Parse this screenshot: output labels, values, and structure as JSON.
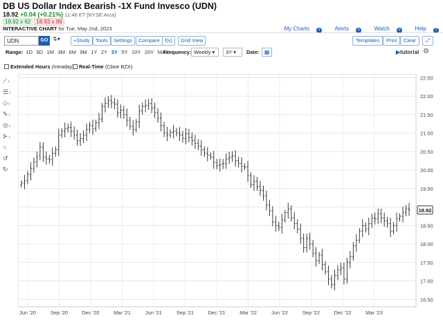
{
  "header": {
    "title": "DB US Dollar Index Bearish -1X Fund Invesco (UDN)",
    "last": "18.92",
    "change": "+0.04 (+0.21%)",
    "time": "11:46 ET [NYSE Arca]",
    "bid": "18.92 x 62",
    "ask": "18.93 x 89",
    "interactive": "INTERACTIVE CHART",
    "for_date": "for Tue, May 2nd, 2023"
  },
  "links": {
    "my_charts": "My Charts",
    "alerts": "Alerts",
    "watch": "Watch",
    "help": "Help"
  },
  "toolbar": {
    "symbol": "UDN",
    "go": "GO",
    "study": "+Study",
    "tools": "Tools",
    "settings": "Settings",
    "compare": "Compare",
    "fx": "f(x)",
    "grid_view": "Grid View",
    "templates": "Templates",
    "print": "Print",
    "clear": "Clear",
    "expand": "⤢"
  },
  "range": {
    "label": "Range:",
    "options": [
      "1D",
      "5D",
      "1M",
      "3M",
      "6M",
      "9M",
      "1Y",
      "2Y",
      "3Y",
      "5Y",
      "10Y",
      "20Y",
      "MAX"
    ],
    "selected": "3Y",
    "frequency_label": "Frequency:",
    "frequency": "Weekly",
    "period": "3Y",
    "date_label": "Date:",
    "tutorial": "tutorial"
  },
  "options": {
    "extended_label": "Extended Hours",
    "extended_note": "(Intraday)",
    "realtime_label": "Real-Time",
    "realtime_note": "(Cboe BZX)"
  },
  "chart_data": {
    "type": "ohlc",
    "title": "",
    "frequency": "weekly",
    "x_tick_labels": [
      "Jun '20",
      "Sep '20",
      "Dec '20",
      "Mar '21",
      "Jun '21",
      "Sep '21",
      "Dec '21",
      "Mar '22",
      "Jun '22",
      "Sep '22",
      "Dec '22",
      "Mar '23"
    ],
    "y_tick_labels": [
      "22.50",
      "22.00",
      "21.50",
      "21.00",
      "20.50",
      "20.00",
      "19.50",
      "19.00",
      "18.50",
      "18.00",
      "17.50",
      "17.00",
      "16.50"
    ],
    "ylim": [
      16.3,
      22.6
    ],
    "last_price_label": "18.92",
    "grid": true,
    "series": [
      {
        "close": [
          19.65,
          19.7,
          19.88,
          20.05,
          20.22,
          20.35,
          20.62,
          20.35,
          20.3,
          20.28,
          20.45,
          20.55,
          20.95,
          21.05,
          21.12,
          21.15,
          21.05,
          20.95,
          20.8,
          20.85,
          20.95,
          21.1,
          21.2,
          21.12,
          21.28,
          21.38,
          21.72,
          21.8,
          21.88,
          21.82,
          21.78,
          21.55,
          21.62,
          21.5,
          21.35,
          21.18,
          21.1,
          21.3,
          21.6,
          21.72,
          21.75,
          21.8,
          21.68,
          21.55,
          21.4,
          21.2,
          21.0,
          20.95,
          21.02,
          21.05,
          21.0,
          20.95,
          20.85,
          20.98,
          20.88,
          20.8,
          20.72,
          20.65,
          20.55,
          20.45,
          20.4,
          20.35,
          20.2,
          20.12,
          20.15,
          20.18,
          20.3,
          20.35,
          20.38,
          20.25,
          20.18,
          20.1,
          20.08,
          19.85,
          19.6,
          19.7,
          19.55,
          19.45,
          19.3,
          19.05,
          18.9,
          18.6,
          18.5,
          18.45,
          18.65,
          18.85,
          18.95,
          18.7,
          18.55,
          18.4,
          18.15,
          17.9,
          18.15,
          18.0,
          17.75,
          17.55,
          17.7,
          17.45,
          17.25,
          17.05,
          16.9,
          17.15,
          17.3,
          17.35,
          17.05,
          17.5,
          17.65,
          17.95,
          18.1,
          18.35,
          18.5,
          18.4,
          18.55,
          18.7,
          18.68,
          18.82,
          18.7,
          18.62,
          18.55,
          18.35,
          18.5,
          18.68,
          18.75,
          18.85,
          18.95,
          18.92
        ],
        "open": [
          19.6,
          19.65,
          19.72,
          19.88,
          20.05,
          20.22,
          20.4,
          20.62,
          20.35,
          20.3,
          20.28,
          20.45,
          20.55,
          20.95,
          21.05,
          21.12,
          21.15,
          21.05,
          20.95,
          20.8,
          20.85,
          20.95,
          21.1,
          21.2,
          21.12,
          21.28,
          21.38,
          21.72,
          21.8,
          21.88,
          21.82,
          21.78,
          21.55,
          21.62,
          21.5,
          21.35,
          21.18,
          21.1,
          21.3,
          21.6,
          21.72,
          21.75,
          21.8,
          21.68,
          21.55,
          21.4,
          21.2,
          21.0,
          20.95,
          21.02,
          21.05,
          21.0,
          20.95,
          20.85,
          20.98,
          20.88,
          20.8,
          20.72,
          20.65,
          20.55,
          20.45,
          20.4,
          20.35,
          20.2,
          20.12,
          20.15,
          20.18,
          20.3,
          20.35,
          20.38,
          20.25,
          20.18,
          20.1,
          20.08,
          19.85,
          19.6,
          19.7,
          19.55,
          19.45,
          19.3,
          19.05,
          18.9,
          18.6,
          18.5,
          18.45,
          18.65,
          18.85,
          18.95,
          18.7,
          18.55,
          18.4,
          18.15,
          17.9,
          18.15,
          18.0,
          17.75,
          17.55,
          17.7,
          17.45,
          17.25,
          17.05,
          16.9,
          17.15,
          17.3,
          17.35,
          17.05,
          17.5,
          17.65,
          17.95,
          18.1,
          18.35,
          18.5,
          18.4,
          18.55,
          18.7,
          18.68,
          18.82,
          18.7,
          18.62,
          18.55,
          18.35,
          18.5,
          18.68,
          18.75,
          18.85,
          18.95
        ]
      }
    ]
  }
}
